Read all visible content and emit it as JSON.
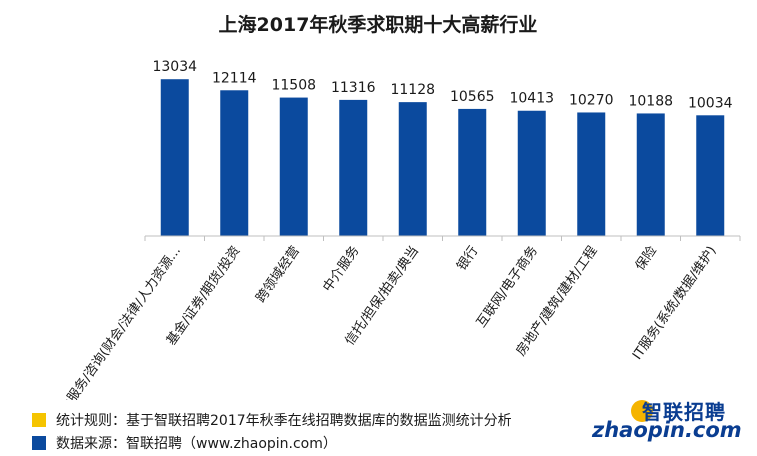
{
  "chart_data": {
    "type": "bar",
    "title": "上海2017年秋季求职期十大高薪行业",
    "categories": [
      "专业服务/咨询(财会/法律/人力资源...",
      "基金/证券/期货/投资",
      "跨领域经营",
      "中介服务",
      "信托/担保/拍卖/典当",
      "银行",
      "互联网/电子商务",
      "房地产/建筑/建材/工程",
      "保险",
      "IT服务(系统/数据/维护)"
    ],
    "values": [
      13034,
      12114,
      11508,
      11316,
      11128,
      10565,
      10413,
      10270,
      10188,
      10034
    ],
    "ylim": [
      0,
      13800
    ],
    "bar_color": "#0b4a9e",
    "grid": false
  },
  "footer": {
    "rule_text": "统计规则：基于智联招聘2017年秋季在线招聘数据库的数据监测统计分析",
    "source_text": "数据来源：智联招聘（www.zhaopin.com）",
    "rule_color": "#f5c400",
    "source_color": "#0b4a9e"
  },
  "logo": {
    "cn_text": "智联招聘",
    "en_text": "zhaopin.com"
  }
}
